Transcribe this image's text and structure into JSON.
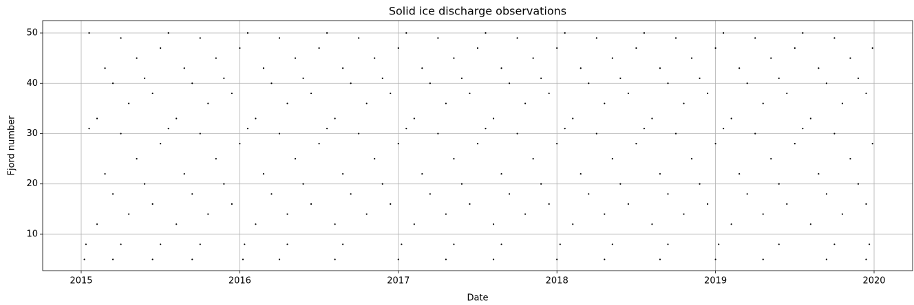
{
  "chart_data": {
    "type": "scatter",
    "title": "Solid ice discharge observations",
    "x_label": "Date",
    "y_label": "Fjord number",
    "color": "#000000",
    "grid": true,
    "xlim": [
      2014.757,
      2020.243
    ],
    "xticks": [
      2015,
      2016,
      2017,
      2018,
      2019,
      2020
    ],
    "ylim": [
      2.76,
      52.46
    ],
    "yticks": [
      10,
      20,
      30,
      40,
      50
    ],
    "x": [
      2015.02,
      2015.2,
      2015.45,
      2015.7,
      2016.02,
      2016.25,
      2016.6,
      2017.0,
      2017.3,
      2017.6,
      2018.0,
      2018.3,
      2018.65,
      2019.0,
      2019.3,
      2019.7,
      2019.95,
      2015.03,
      2015.25,
      2015.5,
      2015.75,
      2016.03,
      2016.3,
      2016.65,
      2017.02,
      2017.35,
      2017.65,
      2018.02,
      2018.35,
      2018.7,
      2019.02,
      2019.4,
      2019.75,
      2019.97,
      2015.1,
      2015.6,
      2016.1,
      2016.6,
      2017.1,
      2017.6,
      2018.1,
      2018.6,
      2019.1,
      2019.6,
      2015.3,
      2015.8,
      2016.3,
      2016.8,
      2017.3,
      2017.8,
      2018.3,
      2018.8,
      2019.3,
      2019.8,
      2015.45,
      2015.95,
      2016.45,
      2016.95,
      2017.45,
      2017.95,
      2018.45,
      2018.95,
      2019.45,
      2019.95,
      2015.2,
      2015.7,
      2016.2,
      2016.7,
      2017.2,
      2017.7,
      2018.2,
      2018.7,
      2019.2,
      2019.7,
      2015.4,
      2015.9,
      2016.4,
      2016.9,
      2017.4,
      2017.9,
      2018.4,
      2018.9,
      2019.4,
      2019.9,
      2015.15,
      2015.65,
      2016.15,
      2016.65,
      2017.15,
      2017.65,
      2018.15,
      2018.65,
      2019.15,
      2019.65,
      2015.35,
      2015.85,
      2016.35,
      2016.85,
      2017.35,
      2017.85,
      2018.35,
      2018.85,
      2019.35,
      2019.85,
      2015.5,
      2016.0,
      2016.5,
      2017.0,
      2017.5,
      2018.0,
      2018.5,
      2019.0,
      2019.5,
      2019.99,
      2015.25,
      2015.75,
      2016.25,
      2016.75,
      2017.25,
      2017.75,
      2018.25,
      2018.75,
      2019.25,
      2019.75,
      2015.05,
      2015.55,
      2016.05,
      2016.55,
      2017.05,
      2017.55,
      2018.05,
      2018.55,
      2019.05,
      2019.55,
      2015.1,
      2015.6,
      2016.1,
      2016.6,
      2017.1,
      2017.6,
      2018.1,
      2018.6,
      2019.1,
      2019.6,
      2015.3,
      2015.8,
      2016.3,
      2016.8,
      2017.3,
      2017.8,
      2018.3,
      2018.8,
      2019.3,
      2019.8,
      2015.45,
      2015.95,
      2016.45,
      2016.95,
      2017.45,
      2017.95,
      2018.45,
      2018.95,
      2019.45,
      2019.95,
      2015.2,
      2015.7,
      2016.2,
      2016.7,
      2017.2,
      2017.7,
      2018.2,
      2018.7,
      2019.2,
      2019.7,
      2015.4,
      2015.9,
      2016.4,
      2016.9,
      2017.4,
      2017.9,
      2018.4,
      2018.9,
      2019.4,
      2019.9,
      2015.15,
      2015.65,
      2016.15,
      2016.65,
      2017.15,
      2017.65,
      2018.15,
      2018.65,
      2019.15,
      2019.65,
      2015.35,
      2015.85,
      2016.35,
      2016.85,
      2017.35,
      2017.85,
      2018.35,
      2018.85,
      2019.35,
      2019.85,
      2015.5,
      2016.0,
      2016.5,
      2017.0,
      2017.5,
      2018.0,
      2018.5,
      2019.0,
      2019.5,
      2019.99,
      2015.25,
      2015.75,
      2016.25,
      2016.75,
      2017.25,
      2017.75,
      2018.25,
      2018.75,
      2019.25,
      2019.75,
      2015.05,
      2015.55,
      2016.05,
      2016.55,
      2017.05,
      2017.55,
      2018.05,
      2018.55,
      2019.05,
      2019.55
    ],
    "y": [
      5,
      5,
      5,
      5,
      5,
      5,
      5,
      5,
      5,
      5,
      5,
      5,
      5,
      5,
      5,
      5,
      5,
      8,
      8,
      8,
      8,
      8,
      8,
      8,
      8,
      8,
      8,
      8,
      8,
      8,
      8,
      8,
      8,
      8,
      12,
      12,
      12,
      12,
      12,
      12,
      12,
      12,
      12,
      12,
      14,
      14,
      14,
      14,
      14,
      14,
      14,
      14,
      14,
      14,
      16,
      16,
      16,
      16,
      16,
      16,
      16,
      16,
      16,
      16,
      18,
      18,
      18,
      18,
      18,
      18,
      18,
      18,
      18,
      18,
      20,
      20,
      20,
      20,
      20,
      20,
      20,
      20,
      20,
      20,
      22,
      22,
      22,
      22,
      22,
      22,
      22,
      22,
      22,
      22,
      25,
      25,
      25,
      25,
      25,
      25,
      25,
      25,
      25,
      25,
      28,
      28,
      28,
      28,
      28,
      28,
      28,
      28,
      28,
      28,
      30,
      30,
      30,
      30,
      30,
      30,
      30,
      30,
      30,
      30,
      31,
      31,
      31,
      31,
      31,
      31,
      31,
      31,
      31,
      31,
      33,
      33,
      33,
      33,
      33,
      33,
      33,
      33,
      33,
      33,
      36,
      36,
      36,
      36,
      36,
      36,
      36,
      36,
      36,
      36,
      38,
      38,
      38,
      38,
      38,
      38,
      38,
      38,
      38,
      38,
      40,
      40,
      40,
      40,
      40,
      40,
      40,
      40,
      40,
      40,
      41,
      41,
      41,
      41,
      41,
      41,
      41,
      41,
      41,
      41,
      43,
      43,
      43,
      43,
      43,
      43,
      43,
      43,
      43,
      43,
      45,
      45,
      45,
      45,
      45,
      45,
      45,
      45,
      45,
      45,
      47,
      47,
      47,
      47,
      47,
      47,
      47,
      47,
      47,
      47,
      49,
      49,
      49,
      49,
      49,
      49,
      49,
      49,
      49,
      49,
      50,
      50,
      50,
      50,
      50,
      50,
      50,
      50,
      50,
      50
    ]
  }
}
